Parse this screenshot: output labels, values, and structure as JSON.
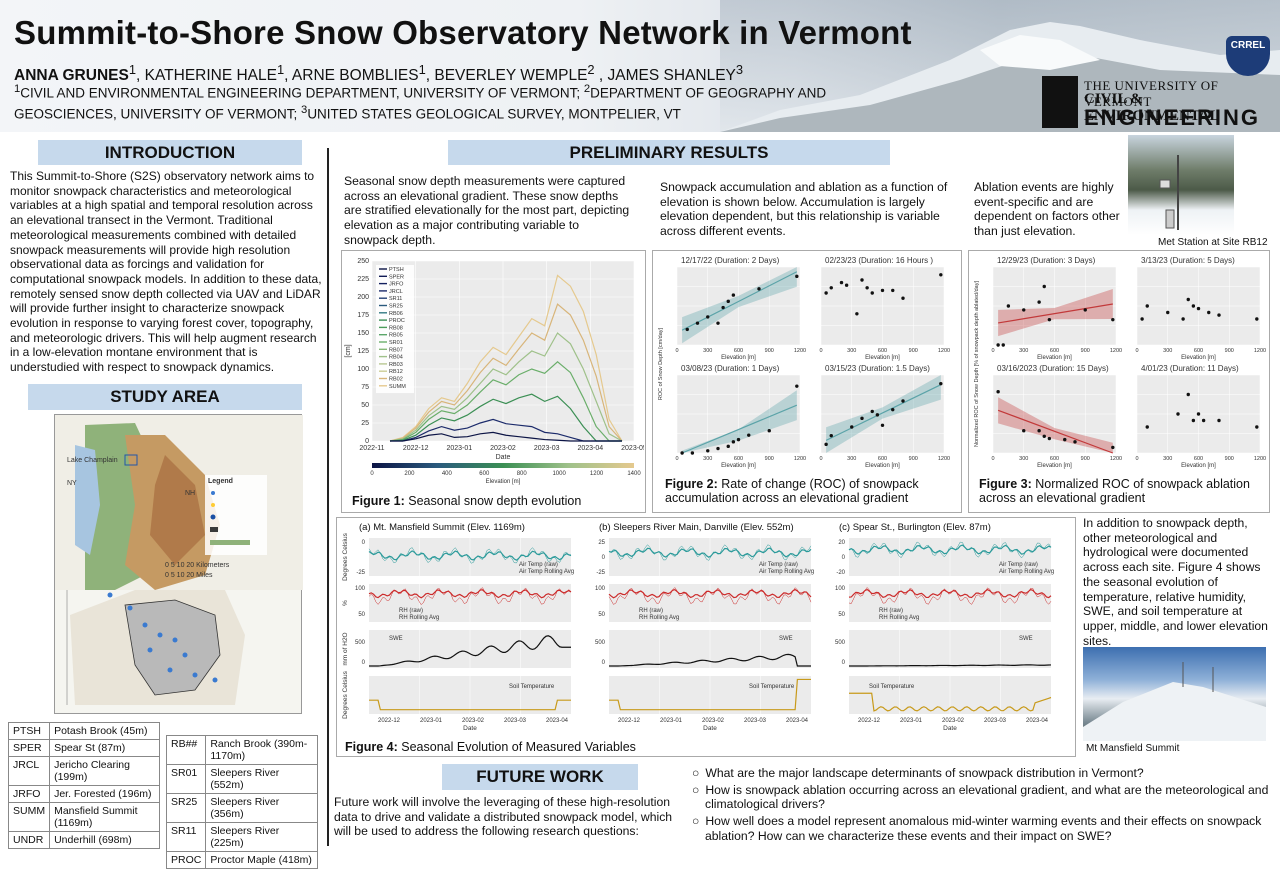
{
  "header": {
    "title": "Summit-to-Shore Snow Observatory Network in Vermont",
    "author_lead": "ANNA GRUNES",
    "author_lead_sup": "1",
    "authors_rest": ", KATHERINE HALE",
    "authors_rest_sup": "1",
    "authors_rest2": ", ARNE BOMBLIES",
    "authors_rest2_sup": "1",
    "authors_rest3": ", BEVERLEY WEMPLE",
    "authors_rest3_sup": "2",
    "authors_rest4": " , JAMES SHANLEY",
    "authors_rest4_sup": "3",
    "affil_sup1": "1",
    "affil1": "CIVIL AND ENVIRONMENTAL ENGINEERING DEPARTMENT, UNIVERSITY OF VERMONT; ",
    "affil_sup2": "2",
    "affil2": "DEPARTMENT OF GEOGRAPHY AND GEOSCIENCES, UNIVERSITY OF VERMONT; ",
    "affil_sup3": "3",
    "affil3": "UNITED STATES GEOLOGICAL SURVEY, MONTPELIER, VT",
    "crrel": "CRREL",
    "uvm_line1": "THE UNIVERSITY OF VERMONT",
    "uvm_line2": "CIVIL & ENVIRONMENTAL",
    "uvm_line3": "ENGINEERING"
  },
  "intro": {
    "heading": "INTRODUCTION",
    "text": "This Summit-to-Shore (S2S) observatory network aims to monitor snowpack characteristics and meteorological variables at a high spatial and temporal resolution across an elevational transect in the Vermont. Traditional meteorological measurements combined with detailed snowpack measurements will provide high resolution observational data as forcings and validation for computational snowpack models. In addition to these data, remotely sensed snow depth collected via UAV and LiDAR will provide further insight to characterize snowpack evolution in response to varying forest cover, topography, and meteorologic drivers. This will help augment research in a low-elevation montane environment that is understudied with respect to snowpack dynamics."
  },
  "study": {
    "heading": "STUDY AREA",
    "legend_title": "Legend",
    "map_lake": "Lake Champlain",
    "map_ny": "NY",
    "map_nh": "NH",
    "scale_km": "0  5  10      20 Kilometers",
    "scale_mi": "0  5  10      20 Miles",
    "sites_left": [
      {
        "code": "PTSH",
        "name": "Potash Brook (45m)"
      },
      {
        "code": "SPER",
        "name": "Spear St (87m)"
      },
      {
        "code": "JRCL",
        "name": "Jericho Clearing (199m)"
      },
      {
        "code": "JRFO",
        "name": "Jer. Forested (196m)"
      },
      {
        "code": "SUMM",
        "name": "Mansfield Summit (1169m)"
      },
      {
        "code": "UNDR",
        "name": "Underhill (698m)"
      }
    ],
    "sites_right": [
      {
        "code": "RB##",
        "name": "Ranch Brook (390m-1170m)"
      },
      {
        "code": "SR01",
        "name": "Sleepers River (552m)"
      },
      {
        "code": "SR25",
        "name": "Sleepers River (356m)"
      },
      {
        "code": "SR11",
        "name": "Sleepers River (225m)"
      },
      {
        "code": "PROC",
        "name": "Proctor Maple (418m)"
      }
    ]
  },
  "results": {
    "heading": "PRELIMINARY RESULTS",
    "text1": "Seasonal snow depth measurements were captured across an elevational gradient. These snow depths are stratified elevationally for the most part, depicting elevation as a major contributing variable to snowpack depth.",
    "text2": "Snowpack accumulation and ablation as a function of elevation is shown below. Accumulation is largely elevation dependent, but this relationship is variable across different events.",
    "text3": "Ablation events are highly event-specific and are dependent on factors other than just elevation.",
    "photo1_caption": "Met Station at Site RB12",
    "fig1_label": "Figure 1:",
    "fig1_caption": " Seasonal snow depth evolution",
    "fig2_label": "Figure 2:",
    "fig2_caption": " Rate of change (ROC) of snowpack accumulation across an elevational gradient",
    "fig3_label": "Figure 3:",
    "fig3_caption": " Normalized ROC of snowpack ablation across an elevational gradient",
    "fig4_label": "Figure 4:",
    "fig4_caption": " Seasonal Evolution of Measured Variables",
    "text4": "In addition to snowpack depth, other meteorological and hydrological were documented across each site. Figure 4 shows the seasonal evolution of temperature, relative humidity, SWE, and soil temperature at upper, middle, and lower elevation sites.",
    "photo2_caption": "Mt Mansfield Summit"
  },
  "future": {
    "heading": "FUTURE WORK",
    "text": "Future work will involve the leveraging of these high-resolution data to drive and validate a distributed snowpack model, which will be used to address the following research questions:",
    "questions": [
      "What are the major landscape determinants of snowpack distribution in Vermont?",
      "How is snowpack ablation occurring across an elevational gradient, and what are the meteorological and climatological drivers?",
      "How well does a model represent anomalous mid-winter warming events and their effects on snowpack ablation? How can we characterize these events and their impact on SWE?"
    ]
  },
  "chart_data": [
    {
      "id": "fig1",
      "type": "line",
      "ylabel": "[cm]",
      "xlabel": "Date",
      "x_ticks": [
        "2022-11",
        "2022-12",
        "2023-01",
        "2023-02",
        "2023-03",
        "2023-04",
        "2023-05"
      ],
      "y_ticks": [
        0,
        25,
        50,
        75,
        100,
        125,
        150,
        175,
        200,
        225,
        250
      ],
      "ylim": [
        0,
        250
      ],
      "legend": [
        "PTSH",
        "SPER",
        "JRFO",
        "JRCL",
        "SR11",
        "SR25",
        "RB06",
        "PROC",
        "RB08",
        "RB05",
        "SR01",
        "RB07",
        "RB04",
        "RB03",
        "RB12",
        "RB02",
        "SUMM"
      ],
      "colorbar_label": "Elevation [m]",
      "colorbar_ticks": [
        0,
        200,
        400,
        600,
        800,
        1000,
        1200,
        1400
      ],
      "series": [
        {
          "name": "SUMM",
          "values": [
            0,
            5,
            20,
            45,
            60,
            55,
            80,
            110,
            130,
            120,
            145,
            170,
            160,
            230,
            215,
            180,
            120,
            30,
            0
          ]
        },
        {
          "name": "RB02",
          "values": [
            0,
            4,
            18,
            40,
            55,
            50,
            70,
            95,
            115,
            105,
            128,
            150,
            140,
            190,
            175,
            140,
            90,
            20,
            0
          ]
        },
        {
          "name": "RB04",
          "values": [
            0,
            3,
            15,
            35,
            48,
            44,
            60,
            80,
            100,
            92,
            110,
            125,
            118,
            150,
            135,
            100,
            55,
            10,
            0
          ]
        },
        {
          "name": "RB07",
          "values": [
            0,
            2,
            12,
            30,
            42,
            38,
            50,
            68,
            85,
            78,
            92,
            100,
            94,
            110,
            95,
            60,
            20,
            0,
            0
          ]
        },
        {
          "name": "SR01",
          "values": [
            0,
            1,
            8,
            22,
            32,
            28,
            36,
            48,
            58,
            52,
            60,
            65,
            55,
            62,
            45,
            20,
            0,
            0,
            0
          ]
        },
        {
          "name": "JRCL",
          "values": [
            0,
            0,
            5,
            14,
            20,
            15,
            18,
            25,
            30,
            24,
            22,
            20,
            12,
            10,
            5,
            0,
            0,
            0,
            0
          ]
        },
        {
          "name": "PTSH",
          "values": [
            0,
            0,
            3,
            8,
            10,
            5,
            6,
            10,
            12,
            8,
            6,
            4,
            2,
            1,
            0,
            0,
            0,
            0,
            0
          ]
        }
      ]
    },
    {
      "id": "fig2",
      "type": "scatter",
      "ylabel": "ROC of Snow Depth [cm/day]",
      "xlabel": "Elevation [m]",
      "panels": [
        {
          "title": "12/17/22 (Duration: 2 Days)",
          "points": [
            [
              100,
              5
            ],
            [
              200,
              7
            ],
            [
              300,
              9
            ],
            [
              400,
              7
            ],
            [
              450,
              12
            ],
            [
              500,
              14
            ],
            [
              550,
              16
            ],
            [
              800,
              18
            ],
            [
              1169,
              22
            ]
          ],
          "fit": true
        },
        {
          "title": "02/23/23 (Duration: 16 Hours )",
          "points": [
            [
              50,
              20
            ],
            [
              100,
              22
            ],
            [
              200,
              24
            ],
            [
              250,
              23
            ],
            [
              350,
              12
            ],
            [
              400,
              25
            ],
            [
              450,
              22
            ],
            [
              500,
              20
            ],
            [
              600,
              21
            ],
            [
              700,
              21
            ],
            [
              800,
              18
            ],
            [
              1169,
              27
            ]
          ],
          "fit": false
        },
        {
          "title": "03/08/23 (Duration: 1 Days)",
          "points": [
            [
              50,
              0
            ],
            [
              150,
              0
            ],
            [
              300,
              1
            ],
            [
              400,
              2
            ],
            [
              500,
              3
            ],
            [
              550,
              5
            ],
            [
              600,
              6
            ],
            [
              700,
              8
            ],
            [
              900,
              10
            ],
            [
              1169,
              30
            ]
          ],
          "fit": true
        },
        {
          "title": "03/15/23 (Duration: 1.5 Days)",
          "points": [
            [
              50,
              5
            ],
            [
              100,
              10
            ],
            [
              300,
              15
            ],
            [
              400,
              20
            ],
            [
              500,
              24
            ],
            [
              550,
              22
            ],
            [
              600,
              16
            ],
            [
              700,
              25
            ],
            [
              800,
              30
            ],
            [
              1169,
              40
            ]
          ],
          "fit": true
        }
      ],
      "x_ticks": [
        0,
        300,
        600,
        900,
        1200
      ]
    },
    {
      "id": "fig3",
      "type": "scatter",
      "ylabel": "Normalized ROC of Snow Depth [% of snowpack depth ablated/day]",
      "xlabel": "Elevation [m]",
      "panels": [
        {
          "title": "12/29/23 (Duration: 3 Days)",
          "points": [
            [
              50,
              0
            ],
            [
              100,
              0
            ],
            [
              150,
              20
            ],
            [
              300,
              18
            ],
            [
              450,
              22
            ],
            [
              500,
              30
            ],
            [
              550,
              13
            ],
            [
              900,
              18
            ],
            [
              1169,
              13
            ]
          ],
          "fit": true
        },
        {
          "title": "3/13/23 (Duration: 5 Days)",
          "points": [
            [
              50,
              2
            ],
            [
              100,
              3
            ],
            [
              300,
              2.5
            ],
            [
              450,
              2
            ],
            [
              500,
              3.5
            ],
            [
              550,
              3
            ],
            [
              600,
              2.8
            ],
            [
              700,
              2.5
            ],
            [
              800,
              2.3
            ],
            [
              1169,
              2
            ]
          ],
          "fit": false
        },
        {
          "title": "03/16/2023 (Duration: 15 Days)",
          "points": [
            [
              50,
              5.5
            ],
            [
              300,
              2
            ],
            [
              450,
              2
            ],
            [
              500,
              1.5
            ],
            [
              550,
              1.3
            ],
            [
              700,
              1.2
            ],
            [
              800,
              1
            ],
            [
              1169,
              0.5
            ]
          ],
          "fit": true
        },
        {
          "title": "4/01/23 (Duration: 11 Days)",
          "points": [
            [
              100,
              2
            ],
            [
              400,
              3
            ],
            [
              500,
              4.5
            ],
            [
              550,
              2.5
            ],
            [
              600,
              3
            ],
            [
              650,
              2.5
            ],
            [
              800,
              2.5
            ],
            [
              1169,
              2
            ]
          ],
          "fit": false
        }
      ],
      "x_ticks": [
        0,
        300,
        600,
        900,
        1200
      ]
    },
    {
      "id": "fig4",
      "type": "line",
      "xlabel": "Date",
      "x_ticks": [
        "2022-12",
        "2023-01",
        "2023-02",
        "2023-03",
        "2023-04"
      ],
      "row_labels": [
        "Degrees Celsius",
        "%",
        "mm of H2O",
        "Degrees Celsius"
      ],
      "columns": [
        {
          "title": "(a) Mt. Mansfield Summit (Elev. 1169m)",
          "temp_legend": [
            "Air Temp (raw)",
            "Air Temp Rolling Avg"
          ],
          "rh_legend": [
            "RH (raw)",
            "RH Rolling Avg"
          ],
          "swe_legend": "SWE",
          "soil_legend": "Soil Temperature",
          "temp_ticks": [
            0,
            -25
          ],
          "rh_ticks": [
            100,
            50
          ],
          "swe_ticks": [
            500,
            0
          ],
          "swe_peak": 780
        },
        {
          "title": "(b) Sleepers River Main, Danville (Elev. 552m)",
          "temp_legend": [
            "Air Temp (raw)",
            "Air Temp Rolling Avg"
          ],
          "rh_legend": [
            "RH (raw)",
            "RH Rolling Avg"
          ],
          "swe_legend": "SWE",
          "soil_legend": "Soil Temperature",
          "temp_ticks": [
            25,
            0,
            -25
          ],
          "rh_ticks": [
            100,
            50
          ],
          "swe_ticks": [
            500,
            0
          ],
          "swe_peak": 300
        },
        {
          "title": "(c) Spear St., Burlington (Elev. 87m)",
          "temp_legend": [
            "Air Temp (raw)",
            "Air Temp Rolling Avg"
          ],
          "rh_legend": [
            "RH (raw)",
            "RH Rolling Avg"
          ],
          "swe_legend": "SWE",
          "soil_legend": "Soil Temperature",
          "temp_ticks": [
            20,
            0,
            -20
          ],
          "rh_ticks": [
            100,
            50
          ],
          "swe_ticks": [
            500,
            0
          ],
          "swe_peak": 30
        }
      ]
    }
  ],
  "colors": {
    "section_bar": "#c6d9ec",
    "fit_teal": "#5ba3a8",
    "fit_red": "#c2393a",
    "temp": "#2a9a9a",
    "rh": "#cc2a2a",
    "soil": "#c89a1a"
  }
}
